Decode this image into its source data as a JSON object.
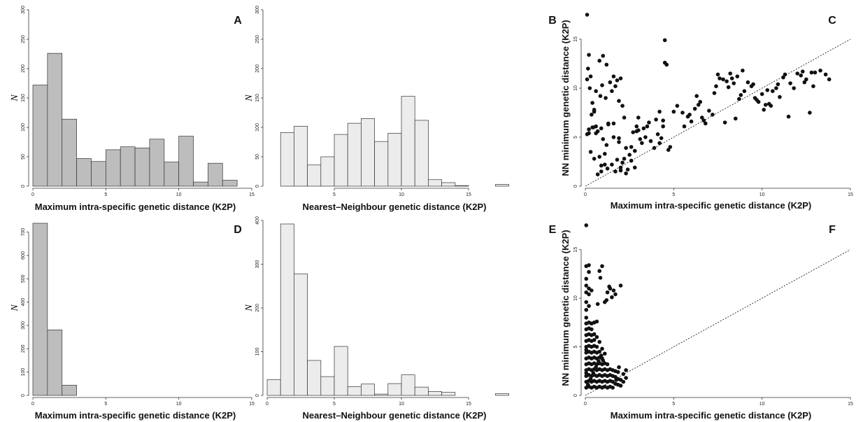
{
  "chart_data": [
    {
      "id": "A",
      "type": "bar",
      "letter": "A",
      "xlabel": "Maximum intra-specific genetic distance (K2P)",
      "ylabel": "N",
      "xlim": [
        0,
        15
      ],
      "ylim": [
        0,
        300
      ],
      "xticks": [
        "0",
        "5",
        "10",
        "15"
      ],
      "yticks": [
        "0",
        "50",
        "100",
        "150",
        "200",
        "250",
        "300"
      ],
      "bin_width": 1,
      "bar_color": "#bdbdbd",
      "bins": [
        0,
        1,
        2,
        3,
        4,
        5,
        6,
        7,
        8,
        9,
        10,
        11,
        12,
        13
      ],
      "values": [
        172,
        226,
        114,
        47,
        42,
        62,
        67,
        65,
        80,
        41,
        85,
        7,
        39,
        10
      ]
    },
    {
      "id": "B",
      "type": "bar",
      "letter": "B",
      "xlabel": "Nearest–Neighbour genetic distance (K2P)",
      "ylabel": "N",
      "xlim": [
        0,
        20
      ],
      "ylim": [
        0,
        300
      ],
      "xticks": [
        "5",
        "10",
        "15"
      ],
      "yticks": [
        "0",
        "50",
        "100",
        "150",
        "200",
        "250",
        "300"
      ],
      "bin_width": 1,
      "bar_color": "#ececec",
      "bins": [
        1,
        2,
        3,
        4,
        5,
        6,
        7,
        8,
        9,
        10,
        11,
        12,
        13,
        14,
        17
      ],
      "values": [
        91,
        102,
        36,
        50,
        88,
        107,
        115,
        76,
        90,
        153,
        112,
        11,
        6,
        1,
        3
      ]
    },
    {
      "id": "C",
      "type": "scatter",
      "letter": "C",
      "xlabel": "Maximum intra-specific genetic distance (K2P)",
      "ylabel": "NN minimum genetic distance (K2P)",
      "xlim": [
        0,
        15
      ],
      "ylim": [
        0,
        18
      ],
      "xticks": [
        "0",
        "5",
        "10",
        "15"
      ],
      "yticks": [
        "0",
        "5",
        "10",
        "15"
      ],
      "reference_line": "1:1 (dotted)",
      "x": [
        0.1,
        0.2,
        0.15,
        0.3,
        0.1,
        0.25,
        0.4,
        0.5,
        0.6,
        0.35,
        0.2,
        0.45,
        0.1,
        0.3,
        0.5,
        0.7,
        0.9,
        1.1,
        0.8,
        1.0,
        1.2,
        0.6,
        0.85,
        0.95,
        1.15,
        1.3,
        0.7,
        1.0,
        1.2,
        0.8,
        1.1,
        0.9,
        1.25,
        1.4,
        1.6,
        1.8,
        2.0,
        1.5,
        1.7,
        1.9,
        2.1,
        2.2,
        1.6,
        1.9,
        2.3,
        1.7,
        2.0,
        2.1,
        1.8,
        1.5,
        2.4,
        2.6,
        2.8,
        2.5,
        2.7,
        2.9,
        3.0,
        2.6,
        2.8,
        3.1,
        3.3,
        3.5,
        3.2,
        3.4,
        3.6,
        3.7,
        4.0,
        4.2,
        4.4,
        4.1,
        4.3,
        4.5,
        4.6,
        4.8,
        4.5,
        4.4,
        5.2,
        5.5,
        5.8,
        6.0,
        5.6,
        5.9,
        6.2,
        6.4,
        6.6,
        6.8,
        6.3,
        6.5,
        7.0,
        7.3,
        7.5,
        7.8,
        7.4,
        7.6,
        8.0,
        8.2,
        8.4,
        8.6,
        8.1,
        8.3,
        8.8,
        9.0,
        9.2,
        8.9,
        9.4,
        9.6,
        9.8,
        10.0,
        10.2,
        9.7,
        10.4,
        10.6,
        10.8,
        10.1,
        10.5,
        11.0,
        11.3,
        11.6,
        11.2,
        11.8,
        12.0,
        12.3,
        12.5,
        12.2,
        12.7,
        13.0,
        13.3,
        13.6,
        12.9,
        13.8,
        0.4,
        0.6,
        0.5,
        1.9,
        2.3,
        2.0,
        3.9,
        4.2,
        4.7,
        7.2,
        7.9,
        8.5,
        9.5,
        10.3,
        11.5,
        12.4,
        12.8,
        1.3,
        2.2,
        2.9,
        0.2,
        0.9,
        1.6,
        3.0,
        5.0,
        6.7,
        8.7,
        10.9
      ],
      "y": [
        17.5,
        13.4,
        12.0,
        11.2,
        10.9,
        10.0,
        8.5,
        7.6,
        6.1,
        7.3,
        5.8,
        6.0,
        5.3,
        3.5,
        2.8,
        1.2,
        1.5,
        2.2,
        12.8,
        13.3,
        12.4,
        9.7,
        9.2,
        10.3,
        9.0,
        6.4,
        5.6,
        4.8,
        4.2,
        3.0,
        3.3,
        2.1,
        1.8,
        10.6,
        11.2,
        10.8,
        11.0,
        9.7,
        10.2,
        8.7,
        8.2,
        7.0,
        5.0,
        4.5,
        3.9,
        1.5,
        1.9,
        2.4,
        2.7,
        2.2,
        1.7,
        2.6,
        1.9,
        3.2,
        5.5,
        6.1,
        5.7,
        4.0,
        3.6,
        4.8,
        5.9,
        6.1,
        4.4,
        5.0,
        6.5,
        4.6,
        6.8,
        7.6,
        6.1,
        5.3,
        4.9,
        12.6,
        12.4,
        4.0,
        14.9,
        6.7,
        8.2,
        7.5,
        7.1,
        6.6,
        6.1,
        7.3,
        7.9,
        8.3,
        7.0,
        6.4,
        9.2,
        8.6,
        7.7,
        9.5,
        11.4,
        10.9,
        10.2,
        11.0,
        10.7,
        11.5,
        10.5,
        11.2,
        10.1,
        11.0,
        9.3,
        9.7,
        10.6,
        11.8,
        10.2,
        9.0,
        8.6,
        9.4,
        8.3,
        8.8,
        8.4,
        9.7,
        10.0,
        7.8,
        8.2,
        9.1,
        11.4,
        10.5,
        11.1,
        10.0,
        11.5,
        11.7,
        10.9,
        11.3,
        7.5,
        11.6,
        11.8,
        11.4,
        10.2,
        10.9,
        6.0,
        5.4,
        7.8,
        4.9,
        1.3,
        1.6,
        3.9,
        4.4,
        3.7,
        7.3,
        6.5,
        6.9,
        10.4,
        9.8,
        7.1,
        10.6,
        11.6,
        6.3,
        2.8,
        5.6,
        5.4,
        5.9,
        6.4,
        7.0,
        7.6,
        6.7,
        8.9,
        10.4
      ]
    },
    {
      "id": "D",
      "type": "bar",
      "letter": "D",
      "xlabel": "Maximum intra-specific genetic distance (K2P)",
      "ylabel": "N",
      "xlim": [
        0,
        15
      ],
      "ylim": [
        0,
        750
      ],
      "xticks": [
        "0",
        "5",
        "10",
        "15"
      ],
      "yticks": [
        "0",
        "100",
        "200",
        "300",
        "400",
        "500",
        "600",
        "700"
      ],
      "bin_width": 1,
      "bar_color": "#bdbdbd",
      "bins": [
        0,
        1,
        2
      ],
      "values": [
        738,
        281,
        44
      ]
    },
    {
      "id": "E",
      "type": "bar",
      "letter": "E",
      "xlabel": "Nearest–Neighbour genetic distance (K2P)",
      "ylabel": "N",
      "xlim": [
        0,
        20
      ],
      "ylim": [
        0,
        400
      ],
      "xticks": [
        "0",
        "5",
        "10",
        "15"
      ],
      "yticks": [
        "0",
        "100",
        "200",
        "300",
        "400"
      ],
      "bin_width": 1,
      "bar_color": "#ececec",
      "bins": [
        0,
        1,
        2,
        3,
        4,
        5,
        6,
        7,
        8,
        9,
        10,
        11,
        12,
        13,
        17
      ],
      "values": [
        36,
        392,
        278,
        80,
        43,
        112,
        20,
        26,
        3,
        27,
        47,
        19,
        9,
        7,
        4
      ]
    },
    {
      "id": "F",
      "type": "scatter",
      "letter": "F",
      "xlabel": "Maximum intra-specific genetic distance (K2P)",
      "ylabel": "NN minimum genetic distance (K2P)",
      "xlim": [
        0,
        15
      ],
      "ylim": [
        0,
        18
      ],
      "xticks": [
        "0",
        "5",
        "10",
        "15"
      ],
      "yticks": [
        "0",
        "5",
        "10",
        "15"
      ],
      "reference_line": "1:1 (dotted)",
      "x": [
        0.05,
        0.05,
        0.05,
        0.05,
        0.05,
        0.05,
        0.05,
        0.05,
        0.05,
        0.05,
        0.05,
        0.05,
        0.05,
        0.05,
        0.05,
        0.05,
        0.05,
        0.05,
        0.05,
        0.05,
        0.05,
        0.05,
        0.2,
        0.2,
        0.2,
        0.2,
        0.2,
        0.2,
        0.2,
        0.2,
        0.2,
        0.2,
        0.2,
        0.2,
        0.2,
        0.2,
        0.2,
        0.2,
        0.2,
        0.35,
        0.35,
        0.35,
        0.35,
        0.35,
        0.35,
        0.35,
        0.35,
        0.35,
        0.35,
        0.35,
        0.35,
        0.35,
        0.5,
        0.5,
        0.5,
        0.5,
        0.5,
        0.5,
        0.5,
        0.5,
        0.5,
        0.5,
        0.5,
        0.65,
        0.65,
        0.65,
        0.65,
        0.65,
        0.65,
        0.65,
        0.65,
        0.65,
        0.65,
        0.8,
        0.8,
        0.8,
        0.8,
        0.8,
        0.8,
        0.8,
        0.8,
        0.8,
        0.95,
        0.95,
        0.95,
        0.95,
        0.95,
        0.95,
        0.95,
        0.95,
        1.1,
        1.1,
        1.1,
        1.1,
        1.1,
        1.1,
        1.1,
        1.25,
        1.25,
        1.25,
        1.25,
        1.25,
        1.25,
        1.4,
        1.4,
        1.4,
        1.4,
        1.4,
        1.55,
        1.55,
        1.55,
        1.55,
        1.7,
        1.7,
        1.7,
        1.7,
        1.85,
        1.85,
        1.85,
        2.0,
        2.0,
        2.0,
        2.15,
        2.15,
        2.3,
        2.3,
        1.2,
        1.35,
        1.5,
        1.6,
        1.75,
        1.9,
        0.15,
        0.3,
        0.45,
        0.6,
        0.75,
        0.9,
        1.0,
        0.7,
        0.85
      ],
      "y": [
        0.8,
        1.4,
        2.0,
        2.6,
        3.2,
        3.8,
        4.4,
        5.0,
        5.6,
        6.2,
        6.8,
        7.4,
        8.0,
        8.8,
        10.6,
        11.3,
        12.0,
        13.3,
        17.5,
        9.6,
        4.7,
        2.3,
        0.9,
        1.5,
        2.1,
        2.7,
        3.3,
        3.9,
        4.5,
        5.1,
        5.7,
        6.3,
        6.9,
        7.5,
        11.0,
        12.7,
        13.4,
        9.2,
        10.4,
        0.8,
        1.4,
        2.0,
        2.6,
        3.2,
        3.8,
        4.4,
        5.0,
        5.6,
        6.2,
        6.8,
        7.4,
        10.8,
        0.9,
        1.5,
        2.1,
        2.7,
        3.3,
        3.9,
        4.5,
        5.1,
        5.7,
        6.3,
        7.5,
        0.8,
        1.4,
        2.0,
        2.6,
        3.2,
        3.8,
        4.4,
        5.0,
        6.0,
        7.6,
        0.9,
        1.5,
        2.1,
        2.7,
        3.3,
        3.9,
        4.5,
        5.5,
        12.8,
        0.8,
        1.4,
        2.0,
        2.6,
        3.2,
        3.8,
        4.8,
        13.3,
        0.9,
        1.5,
        2.1,
        2.7,
        3.3,
        4.3,
        9.6,
        0.8,
        1.4,
        2.0,
        2.6,
        3.2,
        10.6,
        0.9,
        1.5,
        2.1,
        2.7,
        11.0,
        0.8,
        1.4,
        2.0,
        2.6,
        1.2,
        1.9,
        2.5,
        10.4,
        1.1,
        1.7,
        2.4,
        1.0,
        1.6,
        11.3,
        1.4,
        2.2,
        1.8,
        2.6,
        9.8,
        11.2,
        10.1,
        10.8,
        1.6,
        2.9,
        1.1,
        1.7,
        2.3,
        2.9,
        3.5,
        4.1,
        3.6,
        9.4,
        12.1
      ]
    }
  ]
}
